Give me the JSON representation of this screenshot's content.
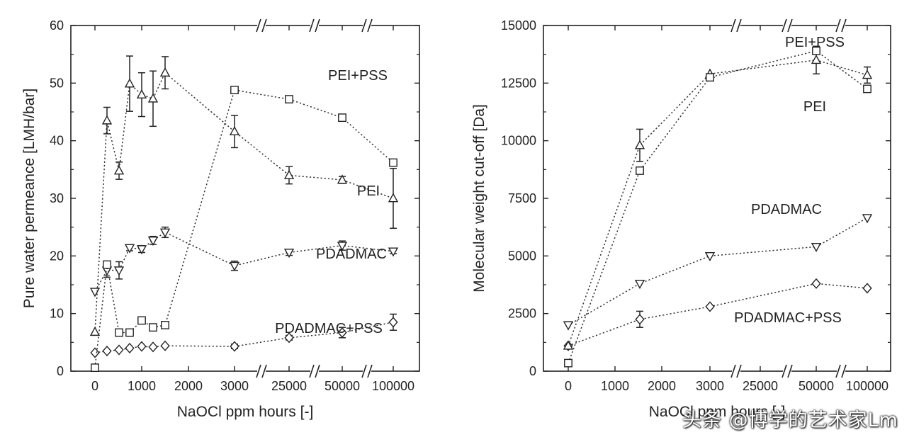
{
  "watermark": "头条 @博学的艺术家Lm",
  "chart_data": [
    {
      "type": "scatter",
      "xlabel": "NaOCl ppm hours [-]",
      "ylabel": "Pure water permeance [LMH/bar]",
      "xticks": [
        "0",
        "1000",
        "2000",
        "3000",
        "25000",
        "50000",
        "100000"
      ],
      "ylim": [
        0,
        60
      ],
      "yticks": [
        0,
        10,
        20,
        30,
        40,
        50,
        60
      ],
      "annotations": [
        "PEI+PSS",
        "PEI",
        "PDADMAC",
        "PDADMAC+PSS"
      ],
      "series": [
        {
          "name": "PEI+PSS",
          "marker": "square",
          "x": [
            0,
            250,
            500,
            750,
            1000,
            1250,
            1500,
            3000,
            25000,
            50000,
            100000
          ],
          "y": [
            0.6,
            18.5,
            6.7,
            6.7,
            8.8,
            7.6,
            8.0,
            48.8,
            47.2,
            44.0,
            36.2
          ],
          "err": [
            0,
            0,
            0,
            0,
            0,
            0,
            0,
            0,
            0,
            0,
            0
          ]
        },
        {
          "name": "PEI",
          "marker": "triangle-up",
          "x": [
            0,
            250,
            500,
            750,
            1000,
            1250,
            1500,
            3000,
            25000,
            50000,
            100000
          ],
          "y": [
            6.8,
            43.5,
            34.8,
            49.9,
            48.0,
            47.3,
            51.8,
            41.6,
            34.0,
            33.2,
            30.0
          ],
          "err": [
            0,
            2.3,
            1.5,
            4.8,
            3.8,
            4.8,
            2.8,
            2.8,
            1.5,
            0.6,
            5.2
          ]
        },
        {
          "name": "PDADMAC",
          "marker": "triangle-down",
          "x": [
            0,
            250,
            500,
            750,
            1000,
            1250,
            1500,
            3000,
            25000,
            50000,
            100000
          ],
          "y": [
            13.8,
            17.5,
            17.5,
            21.4,
            21.2,
            22.7,
            24.1,
            18.3,
            20.6,
            21.8,
            20.8
          ],
          "err": [
            0,
            1.2,
            1.5,
            0.5,
            0.6,
            0.7,
            0.9,
            0.8,
            0.5,
            0.8,
            0.4
          ]
        },
        {
          "name": "PDADMAC+PSS",
          "marker": "diamond",
          "x": [
            0,
            250,
            500,
            750,
            1000,
            1250,
            1500,
            3000,
            25000,
            50000,
            100000
          ],
          "y": [
            3.2,
            3.5,
            3.7,
            4.0,
            4.3,
            4.2,
            4.4,
            4.3,
            5.8,
            6.7,
            8.5
          ],
          "err": [
            0,
            0,
            0,
            0,
            0,
            0,
            0,
            0.4,
            0.4,
            0.9,
            1.4
          ]
        }
      ]
    },
    {
      "type": "scatter",
      "xlabel": "NaOCl ppm hours [-]",
      "ylabel": "Molecular weight cut-off [Da]",
      "xticks": [
        "0",
        "1000",
        "2000",
        "3000",
        "25000",
        "50000",
        "100000"
      ],
      "ylim": [
        0,
        15000
      ],
      "yticks": [
        0,
        2500,
        5000,
        7500,
        10000,
        12500,
        15000
      ],
      "annotations": [
        "PEI+PSS",
        "PEI",
        "PDADMAC",
        "PDADMAC+PSS"
      ],
      "series": [
        {
          "name": "PEI+PSS",
          "marker": "square",
          "x": [
            0,
            1500,
            3000,
            50000,
            100000
          ],
          "y": [
            350,
            8700,
            12750,
            13900,
            12250
          ],
          "err": [
            0,
            0,
            0,
            0,
            0
          ]
        },
        {
          "name": "PEI",
          "marker": "triangle-up",
          "x": [
            0,
            1500,
            3000,
            50000,
            100000
          ],
          "y": [
            1100,
            9800,
            12900,
            13500,
            12850
          ],
          "err": [
            0,
            700,
            0,
            600,
            350
          ]
        },
        {
          "name": "PDADMAC",
          "marker": "triangle-down",
          "x": [
            0,
            1500,
            3000,
            50000,
            100000
          ],
          "y": [
            2000,
            3800,
            5000,
            5400,
            6650
          ],
          "err": [
            0,
            0,
            0,
            0,
            0
          ]
        },
        {
          "name": "PDADMAC+PSS",
          "marker": "diamond",
          "x": [
            0,
            1500,
            3000,
            50000,
            100000
          ],
          "y": [
            1100,
            2250,
            2800,
            3800,
            3600
          ],
          "err": [
            0,
            350,
            0,
            0,
            0
          ]
        }
      ]
    }
  ]
}
